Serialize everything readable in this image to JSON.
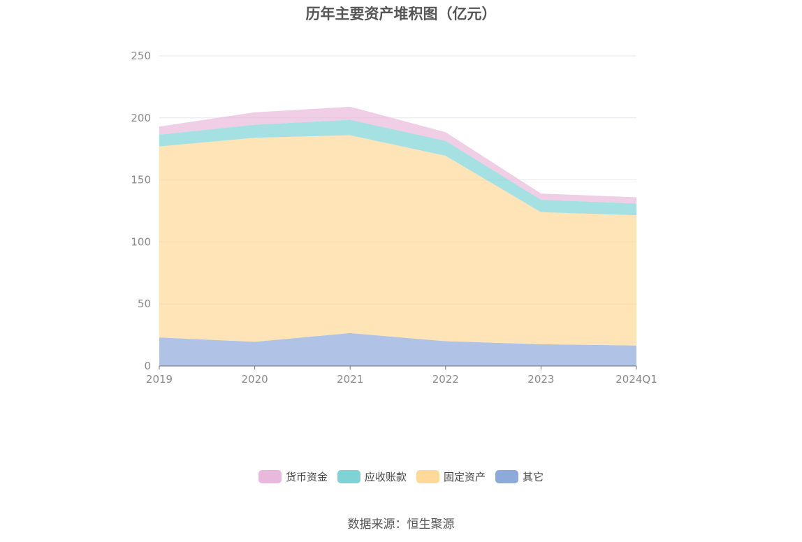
{
  "chart_data": {
    "type": "area",
    "stacked": true,
    "title": "历年主要资产堆积图（亿元）",
    "categories": [
      "2019",
      "2020",
      "2021",
      "2022",
      "2023",
      "2024Q1"
    ],
    "ylim": [
      0,
      250
    ],
    "yticks": [
      0,
      50,
      100,
      150,
      200,
      250
    ],
    "grid": true,
    "legend_position": "bottom",
    "series": [
      {
        "name": "其它",
        "color": "#8eaadb",
        "values": [
          23,
          19.5,
          26.5,
          20,
          17.5,
          16.5
        ]
      },
      {
        "name": "固定资产",
        "color": "#ffd99a",
        "values": [
          154,
          164.5,
          159.5,
          149.5,
          106.5,
          105
        ]
      },
      {
        "name": "应收账款",
        "color": "#7fd3d5",
        "values": [
          9.5,
          10.5,
          12.5,
          12,
          10,
          9.5
        ]
      },
      {
        "name": "货币资金",
        "color": "#e8b9dc",
        "values": [
          6.5,
          10,
          10.5,
          7,
          5,
          5
        ]
      }
    ]
  },
  "legend": [
    {
      "label": "货币资金",
      "color": "#e8b9dc"
    },
    {
      "label": "应收账款",
      "color": "#7fd3d5"
    },
    {
      "label": "固定资产",
      "color": "#ffd99a"
    },
    {
      "label": "其它",
      "color": "#8eaadb"
    }
  ],
  "source": "数据来源：恒生聚源"
}
